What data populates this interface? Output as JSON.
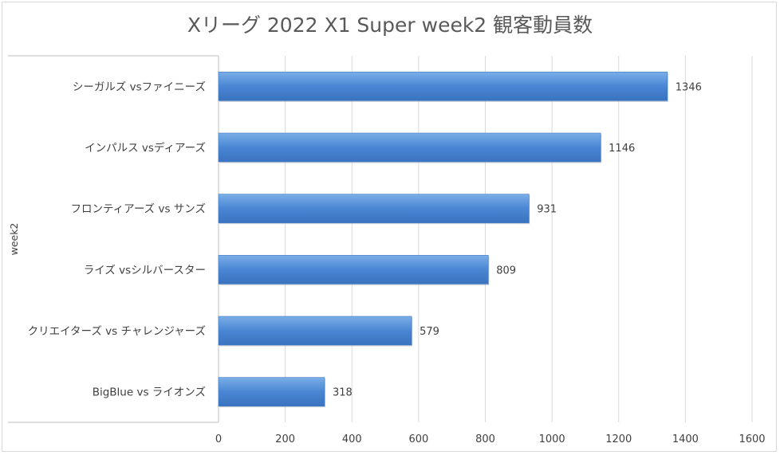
{
  "chart_data": {
    "type": "bar",
    "orientation": "horizontal",
    "title": "Xリーグ 2022 X1 Super week2 観客動員数",
    "group_label": "week2",
    "categories": [
      "シーガルズ vsファイニーズ",
      "インパルス vsディアーズ",
      "フロンティアーズ vs サンズ",
      "ライズ vsシルバースター",
      "クリエイターズ vs チャレンジャーズ",
      "BigBlue vs ライオンズ"
    ],
    "values": [
      1346,
      1146,
      931,
      809,
      579,
      318
    ],
    "xlim": [
      0,
      1600
    ],
    "xticks": [
      0,
      200,
      400,
      600,
      800,
      1000,
      1200,
      1400,
      1600
    ],
    "grid": "vertical",
    "legend": "none",
    "bar_color": "#4a86d4",
    "data_labels": true
  }
}
